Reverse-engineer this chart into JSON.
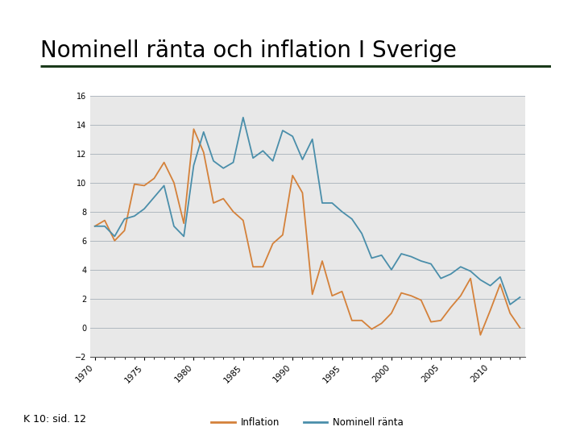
{
  "title": "Nominell ränta och inflation I Sverige",
  "title_color": "#000000",
  "title_fontsize": 20,
  "separator_color": "#1a3a1a",
  "bg_color": "#e8e8e8",
  "fig_bg_color": "#ffffff",
  "inflation_color": "#d4813a",
  "nominal_color": "#4a8eaa",
  "legend_label_inflation": "Inflation",
  "legend_label_nominal": "Nominell ränta",
  "ylim": [
    -2,
    16
  ],
  "yticks": [
    -2,
    0,
    2,
    4,
    6,
    8,
    10,
    12,
    14,
    16
  ],
  "footnote": "K 10: sid. 12",
  "years": [
    1970,
    1971,
    1972,
    1973,
    1974,
    1975,
    1976,
    1977,
    1978,
    1979,
    1980,
    1981,
    1982,
    1983,
    1984,
    1985,
    1986,
    1987,
    1988,
    1989,
    1990,
    1991,
    1992,
    1993,
    1994,
    1995,
    1996,
    1997,
    1998,
    1999,
    2000,
    2001,
    2002,
    2003,
    2004,
    2005,
    2006,
    2007,
    2008,
    2009,
    2010,
    2011,
    2012,
    2013
  ],
  "inflation": [
    7.0,
    7.4,
    6.0,
    6.7,
    9.9,
    9.8,
    10.3,
    11.4,
    10.0,
    7.2,
    13.7,
    12.1,
    8.6,
    8.9,
    8.0,
    7.4,
    4.2,
    4.2,
    5.8,
    6.4,
    10.5,
    9.3,
    2.3,
    4.6,
    2.2,
    2.5,
    0.5,
    0.5,
    -0.1,
    0.3,
    1.0,
    2.4,
    2.2,
    1.9,
    0.4,
    0.5,
    1.4,
    2.2,
    3.4,
    -0.5,
    1.2,
    3.0,
    1.0,
    0.0
  ],
  "nominal": [
    7.0,
    7.0,
    6.3,
    7.5,
    7.7,
    8.2,
    9.0,
    9.8,
    7.0,
    6.3,
    11.2,
    13.5,
    11.5,
    11.0,
    11.4,
    14.5,
    11.7,
    12.2,
    11.5,
    13.6,
    13.2,
    11.6,
    13.0,
    8.6,
    8.6,
    8.0,
    7.5,
    6.5,
    4.8,
    5.0,
    4.0,
    5.1,
    4.9,
    4.6,
    4.4,
    3.4,
    3.7,
    4.2,
    3.9,
    3.3,
    2.9,
    3.5,
    1.6,
    2.1
  ],
  "xtick_years": [
    1970,
    1975,
    1980,
    1985,
    1990,
    1995,
    2000,
    2005,
    2010
  ],
  "grid_color": "#b0b8c0",
  "grid_linewidth": 0.7,
  "line_linewidth": 1.3
}
